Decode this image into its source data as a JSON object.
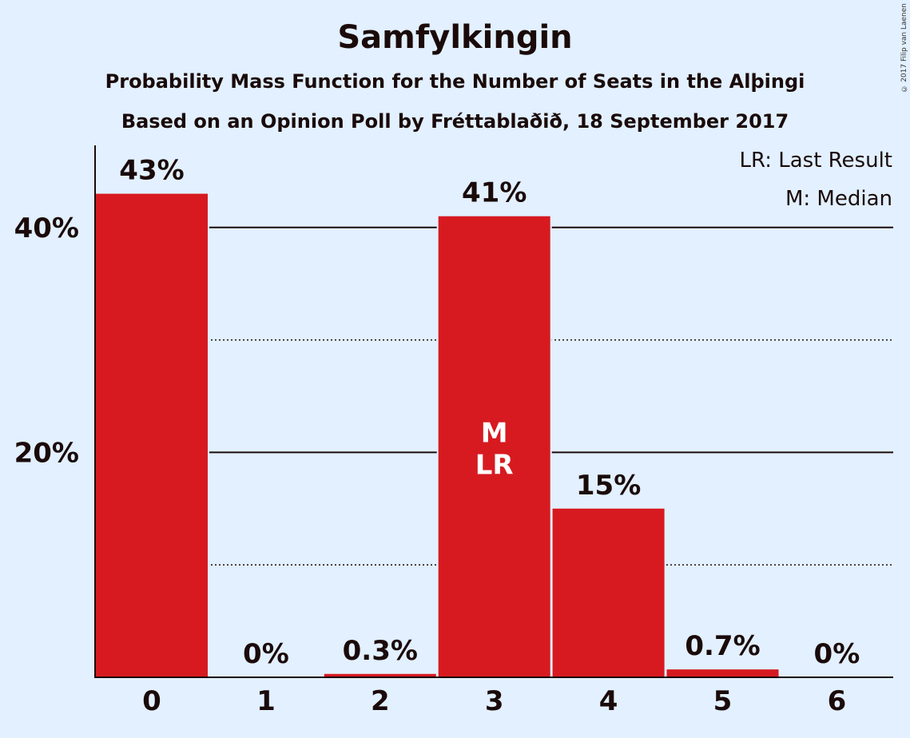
{
  "header": {
    "title": "Samfylkingin",
    "subtitle": "Probability Mass Function for the Number of Seats in the Alþingi",
    "subtitle2": "Based on an Opinion Poll by Fréttablaðið, 18 September 2017",
    "copyright": "© 2017 Filip van Laenen"
  },
  "legend": {
    "last_result": "LR: Last Result",
    "median": "M: Median"
  },
  "colors": {
    "background": "#e2f0ff",
    "bar": "#d71a20",
    "text": "#1a0a0a"
  },
  "chart_data": {
    "type": "bar",
    "categories": [
      "0",
      "1",
      "2",
      "3",
      "4",
      "5",
      "6"
    ],
    "values": [
      43,
      0,
      0.3,
      41,
      15,
      0.7,
      0
    ],
    "data_labels": [
      "43%",
      "0%",
      "0.3%",
      "41%",
      "15%",
      "0.7%",
      "0%"
    ],
    "ylim": [
      0,
      47
    ],
    "yticks": [
      20,
      40
    ],
    "ytick_labels": [
      "20%",
      "40%"
    ],
    "minor_gridlines": [
      10,
      30
    ],
    "bar_annotations": [
      {
        "category": "3",
        "lines": [
          "M",
          "LR"
        ]
      }
    ],
    "legend_position": "top-right"
  }
}
